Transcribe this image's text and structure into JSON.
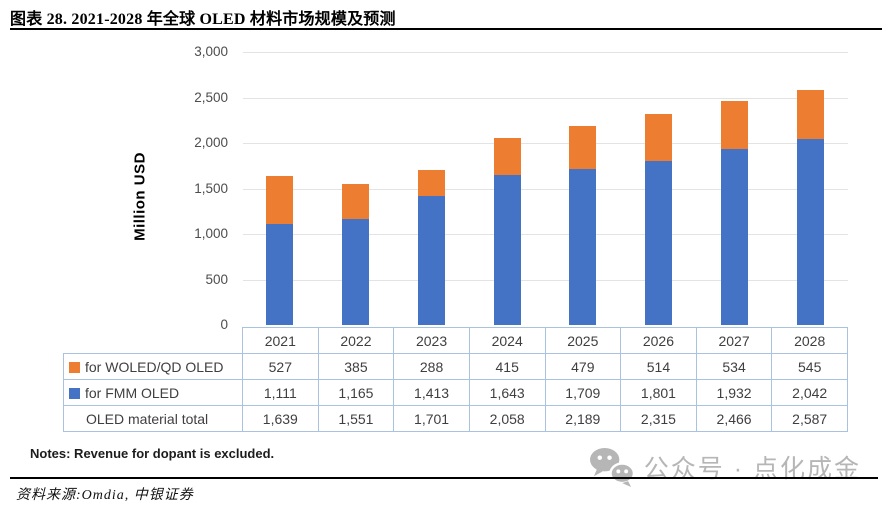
{
  "figure": {
    "title": "图表 28. 2021-2028 年全球 OLED 材料市场规模及预测",
    "notes": "Notes: Revenue for dopant is excluded.",
    "source": "资料来源:Omdia, 中银证券",
    "watermark_text": "公众号 · 点化成金",
    "watermark_icon": "wechat-icon"
  },
  "chart_data": {
    "type": "bar",
    "stacked": true,
    "title": "",
    "xlabel": "",
    "ylabel": "Million USD",
    "ylim": [
      0,
      3000
    ],
    "yticks": [
      "0",
      "500",
      "1,000",
      "1,500",
      "2,000",
      "2,500",
      "3,000"
    ],
    "grid": true,
    "legend_position": "data-table-below-chart",
    "categories": [
      "2021",
      "2022",
      "2023",
      "2024",
      "2025",
      "2026",
      "2027",
      "2028"
    ],
    "series": [
      {
        "name": "for FMM OLED",
        "color": "#4472C4",
        "values": [
          1111,
          1165,
          1413,
          1643,
          1709,
          1801,
          1932,
          2042
        ]
      },
      {
        "name": "for WOLED/QD OLED",
        "color": "#ED7D31",
        "values": [
          527,
          385,
          288,
          415,
          479,
          514,
          534,
          545
        ]
      }
    ],
    "totals": {
      "name": "OLED material total",
      "values": [
        1639,
        1551,
        1701,
        2058,
        2189,
        2315,
        2466,
        2587
      ]
    }
  },
  "data_table": {
    "header": [
      "2021",
      "2022",
      "2023",
      "2024",
      "2025",
      "2026",
      "2027",
      "2028"
    ],
    "rows": [
      {
        "label": "for WOLED/QD OLED",
        "swatch": "#ED7D31",
        "values": [
          "527",
          "385",
          "288",
          "415",
          "479",
          "514",
          "534",
          "545"
        ]
      },
      {
        "label": "for FMM OLED",
        "swatch": "#4472C4",
        "values": [
          "1,111",
          "1,165",
          "1,413",
          "1,643",
          "1,709",
          "1,801",
          "1,932",
          "2,042"
        ]
      },
      {
        "label": "OLED material total",
        "swatch": "",
        "values": [
          "1,639",
          "1,551",
          "1,701",
          "2,058",
          "2,189",
          "2,315",
          "2,466",
          "2,587"
        ]
      }
    ]
  },
  "colors": {
    "bar_blue": "#4472C4",
    "bar_orange": "#ED7D31",
    "gridline": "#E3E3E3",
    "table_border": "#A9C3DE",
    "table_text": "#3F3F3F",
    "watermark": "#B6B6B6"
  }
}
